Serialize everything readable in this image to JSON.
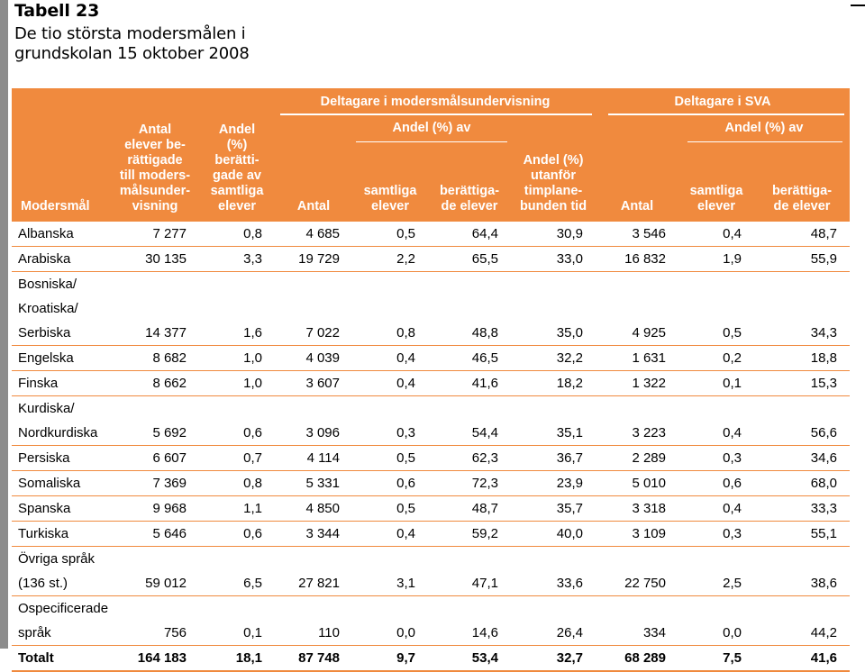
{
  "title": {
    "label": "Tabell 23",
    "subtitle_line1": "De tio största modersmålen i",
    "subtitle_line2": "grundskolan 15 oktober 2008"
  },
  "header": {
    "modersmal": "Modersmål",
    "antal_berattigade": [
      "Antal",
      "elever be-",
      "rättigade",
      "till moders-",
      "målsunder-",
      "visning"
    ],
    "andel_berattigade": [
      "Andel",
      "(%)",
      "berätti-",
      "gade av",
      "samtliga",
      "elever"
    ],
    "group_mu": "Deltagare i modersmålsundervisning",
    "group_mu_andel": "Andel (%) av",
    "group_sva": "Deltagare i SVA",
    "group_sva_andel": "Andel (%) av",
    "antal": "Antal",
    "samtliga_elever": [
      "samtliga",
      "elever"
    ],
    "berattigade_elever": [
      "berättiga-",
      "de elever"
    ],
    "andel_utanfor": [
      "Andel (%)",
      "utanför",
      "timplane-",
      "bunden tid"
    ],
    "sva_antal": "Antal",
    "sva_samtliga": [
      "samtliga",
      "elever"
    ],
    "sva_berattigade": [
      "berättiga-",
      "de elever"
    ]
  },
  "rows": [
    {
      "name": [
        "Albanska"
      ],
      "v": [
        "7 277",
        "0,8",
        "4 685",
        "0,5",
        "64,4",
        "30,9",
        "3 546",
        "0,4",
        "48,7"
      ]
    },
    {
      "name": [
        "Arabiska"
      ],
      "v": [
        "30 135",
        "3,3",
        "19 729",
        "2,2",
        "65,5",
        "33,0",
        "16 832",
        "1,9",
        "55,9"
      ]
    },
    {
      "name": [
        "Bosniska/",
        "Kroatiska/",
        "Serbiska"
      ],
      "v": [
        "14 377",
        "1,6",
        "7 022",
        "0,8",
        "48,8",
        "35,0",
        "4 925",
        "0,5",
        "34,3"
      ]
    },
    {
      "name": [
        "Engelska"
      ],
      "v": [
        "8 682",
        "1,0",
        "4 039",
        "0,4",
        "46,5",
        "32,2",
        "1 631",
        "0,2",
        "18,8"
      ]
    },
    {
      "name": [
        "Finska"
      ],
      "v": [
        "8 662",
        "1,0",
        "3 607",
        "0,4",
        "41,6",
        "18,2",
        "1 322",
        "0,1",
        "15,3"
      ]
    },
    {
      "name": [
        "Kurdiska/",
        "Nordkurdiska"
      ],
      "v": [
        "5 692",
        "0,6",
        "3 096",
        "0,3",
        "54,4",
        "35,1",
        "3 223",
        "0,4",
        "56,6"
      ]
    },
    {
      "name": [
        "Persiska"
      ],
      "v": [
        "6 607",
        "0,7",
        "4 114",
        "0,5",
        "62,3",
        "36,7",
        "2 289",
        "0,3",
        "34,6"
      ]
    },
    {
      "name": [
        "Somaliska"
      ],
      "v": [
        "7 369",
        "0,8",
        "5 331",
        "0,6",
        "72,3",
        "23,9",
        "5 010",
        "0,6",
        "68,0"
      ]
    },
    {
      "name": [
        "Spanska"
      ],
      "v": [
        "9 968",
        "1,1",
        "4 850",
        "0,5",
        "48,7",
        "35,7",
        "3 318",
        "0,4",
        "33,3"
      ]
    },
    {
      "name": [
        "Turkiska"
      ],
      "v": [
        "5 646",
        "0,6",
        "3 344",
        "0,4",
        "59,2",
        "40,0",
        "3 109",
        "0,3",
        "55,1"
      ]
    },
    {
      "name": [
        "Övriga språk",
        "(136 st.)"
      ],
      "v": [
        "59 012",
        "6,5",
        "27 821",
        "3,1",
        "47,1",
        "33,6",
        "22 750",
        "2,5",
        "38,6"
      ]
    },
    {
      "name": [
        "Ospecificerade",
        "språk"
      ],
      "v": [
        "756",
        "0,1",
        "110",
        "0,0",
        "14,6",
        "26,4",
        "334",
        "0,0",
        "44,2"
      ]
    }
  ],
  "total": {
    "name": "Totalt",
    "v": [
      "164 183",
      "18,1",
      "87 748",
      "9,7",
      "53,4",
      "32,7",
      "68 289",
      "7,5",
      "41,6"
    ]
  },
  "colors": {
    "accent": "#f08a3e",
    "sidebar": "#8c8c8c"
  }
}
